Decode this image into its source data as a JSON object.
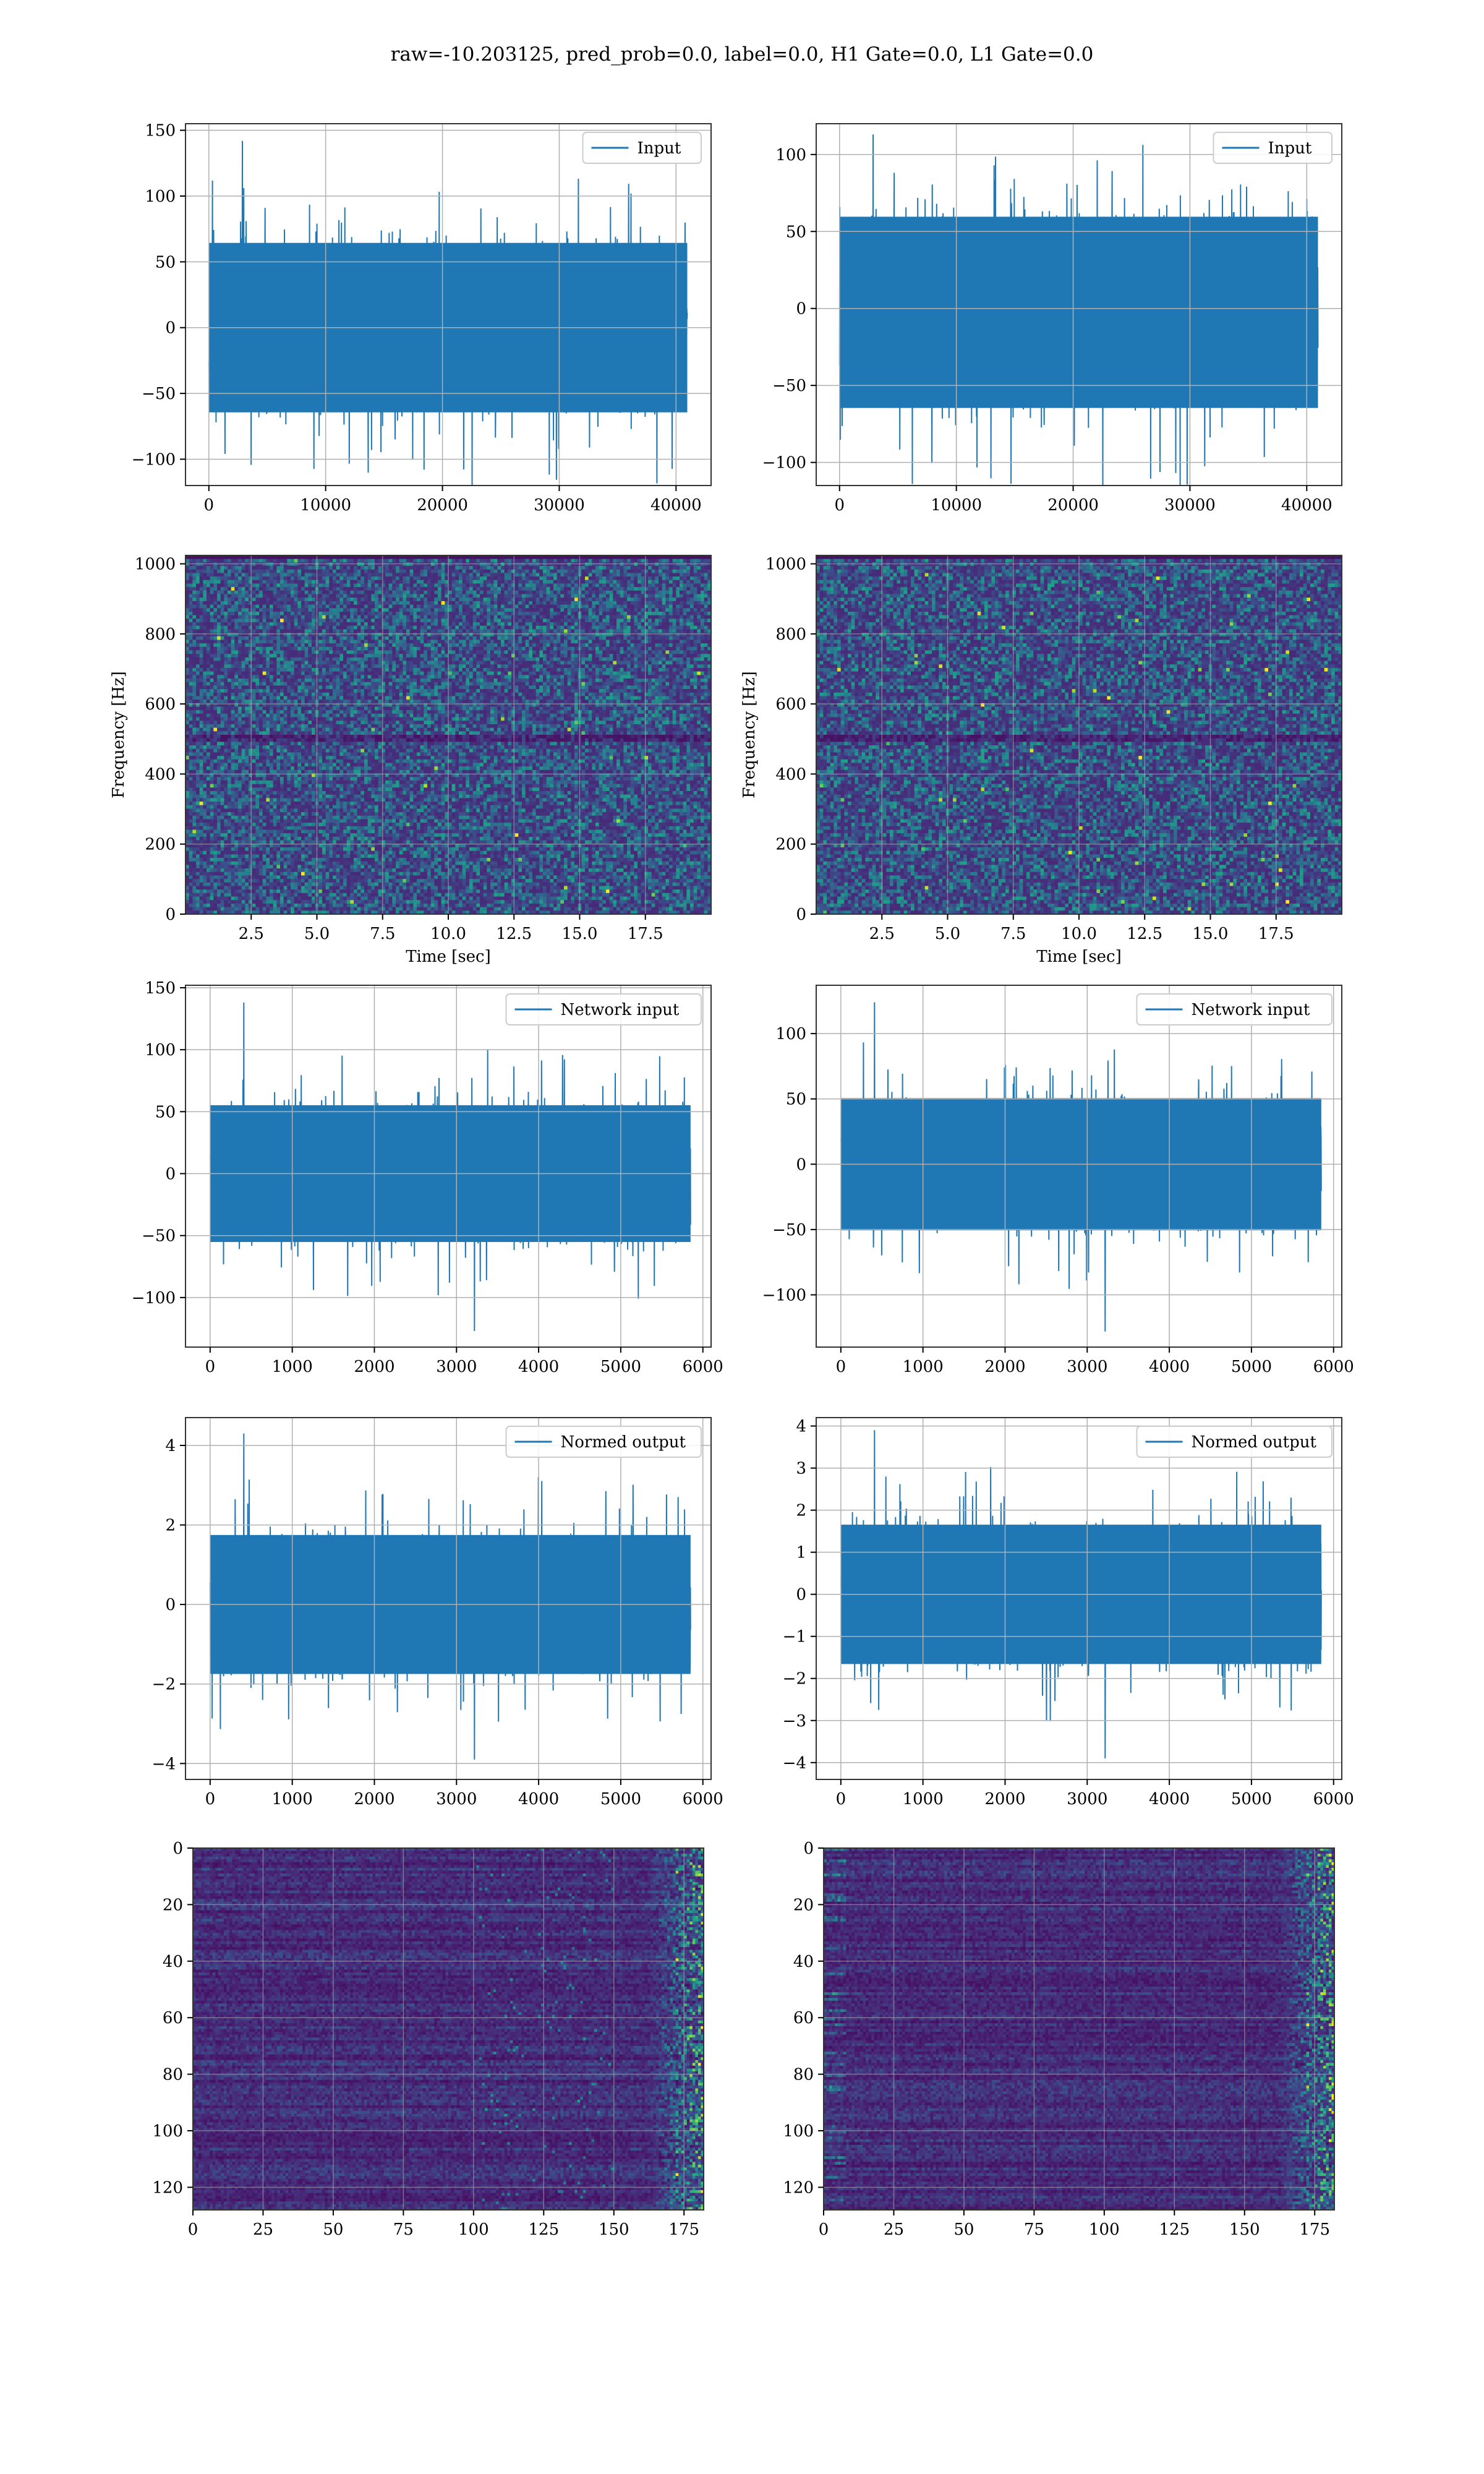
{
  "figure": {
    "title": "raw=-10.203125, pred_prob=0.0, label=0.0, H1 Gate=0.0, L1 Gate=0.0",
    "colors": {
      "line": "#1f77b4",
      "grid": "#b0b0b0",
      "spine": "#333333",
      "viridis": [
        "#440154",
        "#482777",
        "#3e4989",
        "#31688e",
        "#26828e",
        "#1f9e89",
        "#35b779",
        "#6ece58",
        "#b5de2b",
        "#fde725"
      ]
    }
  },
  "chart_data": [
    {
      "id": "input-left",
      "type": "line",
      "legend": "Input",
      "legend_position": "top-right",
      "xlim": [
        -2000,
        43000
      ],
      "ylim": [
        -120,
        155
      ],
      "xticks": [
        0,
        10000,
        20000,
        30000,
        40000
      ],
      "xtick_labels": [
        "0",
        "10000",
        "20000",
        "30000",
        "40000"
      ],
      "yticks": [
        -100,
        -50,
        0,
        50,
        100,
        150
      ],
      "ytick_labels": [
        "−100",
        "−50",
        "0",
        "50",
        "100",
        "150"
      ],
      "grid": true,
      "series": [
        {
          "x_range": [
            0,
            40960
          ],
          "n_samples": 40960,
          "band": [
            -70,
            70
          ],
          "extremes": [
            -122,
            142
          ]
        }
      ]
    },
    {
      "id": "input-right",
      "type": "line",
      "legend": "Input",
      "legend_position": "top-right",
      "xlim": [
        -2000,
        43000
      ],
      "ylim": [
        -115,
        120
      ],
      "xticks": [
        0,
        10000,
        20000,
        30000,
        40000
      ],
      "xtick_labels": [
        "0",
        "10000",
        "20000",
        "30000",
        "40000"
      ],
      "yticks": [
        -100,
        -50,
        0,
        50,
        100
      ],
      "ytick_labels": [
        "−100",
        "−50",
        "0",
        "50",
        "100"
      ],
      "grid": true,
      "series": [
        {
          "x_range": [
            0,
            40960
          ],
          "n_samples": 40960,
          "band": [
            -70,
            65
          ],
          "extremes": [
            -118,
            113
          ]
        }
      ]
    },
    {
      "id": "spectrogram-left",
      "type": "heatmap",
      "colormap": "viridis",
      "xlim": [
        0,
        20
      ],
      "ylim": [
        0,
        1024
      ],
      "xticks": [
        2.5,
        5.0,
        7.5,
        10.0,
        12.5,
        15.0,
        17.5
      ],
      "xtick_labels": [
        "2.5",
        "5.0",
        "7.5",
        "10.0",
        "12.5",
        "15.0",
        "17.5"
      ],
      "yticks": [
        0,
        200,
        400,
        600,
        800,
        1000
      ],
      "ytick_labels": [
        "0",
        "200",
        "400",
        "600",
        "800",
        "1000"
      ],
      "xlabel": "Time [sec]",
      "ylabel": "Frequency [Hz]",
      "grid": true
    },
    {
      "id": "spectrogram-right",
      "type": "heatmap",
      "colormap": "viridis",
      "xlim": [
        0,
        20
      ],
      "ylim": [
        0,
        1024
      ],
      "xticks": [
        2.5,
        5.0,
        7.5,
        10.0,
        12.5,
        15.0,
        17.5
      ],
      "xtick_labels": [
        "2.5",
        "5.0",
        "7.5",
        "10.0",
        "12.5",
        "15.0",
        "17.5"
      ],
      "yticks": [
        0,
        200,
        400,
        600,
        800,
        1000
      ],
      "ytick_labels": [
        "0",
        "200",
        "400",
        "600",
        "800",
        "1000"
      ],
      "xlabel": "Time [sec]",
      "ylabel": "Frequency [Hz]",
      "grid": true
    },
    {
      "id": "network-input-left",
      "type": "line",
      "legend": "Network input",
      "legend_position": "top-right",
      "xlim": [
        -300,
        6100
      ],
      "ylim": [
        -140,
        152
      ],
      "xticks": [
        0,
        1000,
        2000,
        3000,
        4000,
        5000,
        6000
      ],
      "xtick_labels": [
        "0",
        "1000",
        "2000",
        "3000",
        "4000",
        "5000",
        "6000"
      ],
      "yticks": [
        -100,
        -50,
        0,
        50,
        100,
        150
      ],
      "ytick_labels": [
        "−100",
        "−50",
        "0",
        "50",
        "100",
        "150"
      ],
      "grid": true,
      "series": [
        {
          "x_range": [
            0,
            5850
          ],
          "n_samples": 5850,
          "band": [
            -60,
            60
          ],
          "extremes": [
            -127,
            138
          ]
        }
      ]
    },
    {
      "id": "network-input-right",
      "type": "line",
      "legend": "Network input",
      "legend_position": "top-right",
      "xlim": [
        -300,
        6100
      ],
      "ylim": [
        -140,
        137
      ],
      "xticks": [
        0,
        1000,
        2000,
        3000,
        4000,
        5000,
        6000
      ],
      "xtick_labels": [
        "0",
        "1000",
        "2000",
        "3000",
        "4000",
        "5000",
        "6000"
      ],
      "yticks": [
        -100,
        -50,
        0,
        50,
        100
      ],
      "ytick_labels": [
        "−100",
        "−50",
        "0",
        "50",
        "100"
      ],
      "grid": true,
      "series": [
        {
          "x_range": [
            0,
            5850
          ],
          "n_samples": 5850,
          "band": [
            -55,
            55
          ],
          "extremes": [
            -128,
            124
          ]
        }
      ]
    },
    {
      "id": "normed-output-left",
      "type": "line",
      "legend": "Normed output",
      "legend_position": "top-right",
      "xlim": [
        -300,
        6100
      ],
      "ylim": [
        -4.4,
        4.7
      ],
      "xticks": [
        0,
        1000,
        2000,
        3000,
        4000,
        5000,
        6000
      ],
      "xtick_labels": [
        "0",
        "1000",
        "2000",
        "3000",
        "4000",
        "5000",
        "6000"
      ],
      "yticks": [
        -4,
        -2,
        0,
        2,
        4
      ],
      "ytick_labels": [
        "−4",
        "−2",
        "0",
        "2",
        "4"
      ],
      "grid": true,
      "series": [
        {
          "x_range": [
            0,
            5850
          ],
          "n_samples": 5850,
          "band": [
            -1.9,
            1.9
          ],
          "extremes": [
            -3.9,
            4.3
          ]
        }
      ]
    },
    {
      "id": "normed-output-right",
      "type": "line",
      "legend": "Normed output",
      "legend_position": "top-right",
      "xlim": [
        -300,
        6100
      ],
      "ylim": [
        -4.4,
        4.2
      ],
      "xticks": [
        0,
        1000,
        2000,
        3000,
        4000,
        5000,
        6000
      ],
      "xtick_labels": [
        "0",
        "1000",
        "2000",
        "3000",
        "4000",
        "5000",
        "6000"
      ],
      "yticks": [
        -4,
        -3,
        -2,
        -1,
        0,
        1,
        2,
        3,
        4
      ],
      "ytick_labels": [
        "−4",
        "−3",
        "−2",
        "−1",
        "0",
        "1",
        "2",
        "3",
        "4"
      ],
      "grid": true,
      "series": [
        {
          "x_range": [
            0,
            5850
          ],
          "n_samples": 5850,
          "band": [
            -1.8,
            1.8
          ],
          "extremes": [
            -3.9,
            3.9
          ]
        }
      ]
    },
    {
      "id": "feature-map-left",
      "type": "heatmap",
      "colormap": "viridis",
      "xlim": [
        0,
        182
      ],
      "ylim": [
        128,
        0
      ],
      "shape": [
        128,
        182
      ],
      "xticks": [
        0,
        25,
        50,
        75,
        100,
        125,
        150,
        175
      ],
      "xtick_labels": [
        "0",
        "25",
        "50",
        "75",
        "100",
        "125",
        "150",
        "175"
      ],
      "yticks": [
        0,
        20,
        40,
        60,
        80,
        100,
        120
      ],
      "ytick_labels": [
        "0",
        "20",
        "40",
        "60",
        "80",
        "100",
        "120"
      ],
      "grid": true
    },
    {
      "id": "feature-map-right",
      "type": "heatmap",
      "colormap": "viridis",
      "xlim": [
        0,
        182
      ],
      "ylim": [
        128,
        0
      ],
      "shape": [
        128,
        182
      ],
      "xticks": [
        0,
        25,
        50,
        75,
        100,
        125,
        150,
        175
      ],
      "xtick_labels": [
        "0",
        "25",
        "50",
        "75",
        "100",
        "125",
        "150",
        "175"
      ],
      "yticks": [
        0,
        20,
        40,
        60,
        80,
        100,
        120
      ],
      "ytick_labels": [
        "0",
        "20",
        "40",
        "60",
        "80",
        "100",
        "120"
      ],
      "grid": true
    }
  ]
}
